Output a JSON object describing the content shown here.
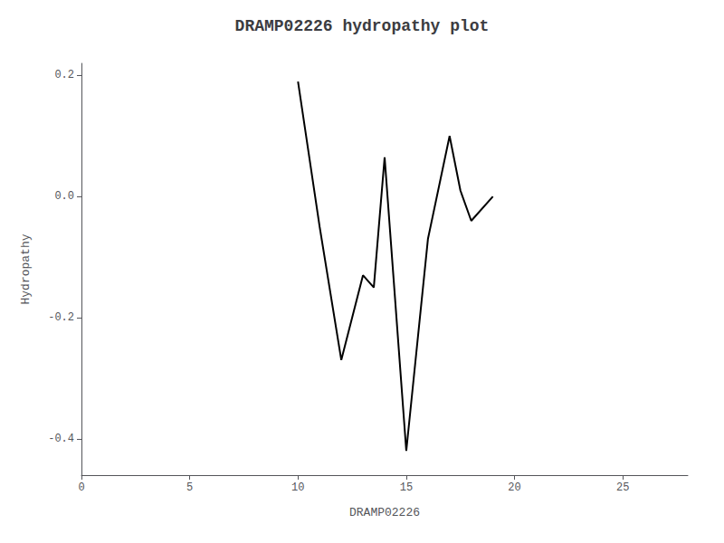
{
  "chart_data": {
    "type": "line",
    "title": "DRAMP02226 hydropathy plot",
    "xlabel": "DRAMP02226",
    "ylabel": "Hydropathy",
    "x": [
      10,
      11,
      12,
      13,
      13.5,
      14,
      15,
      16,
      17,
      17.5,
      18,
      19
    ],
    "values": [
      0.19,
      -0.05,
      -0.27,
      -0.13,
      -0.15,
      0.065,
      -0.42,
      -0.07,
      0.1,
      0.01,
      -0.04,
      0.0
    ],
    "color": "#000000",
    "xlim": [
      0,
      28
    ],
    "xticks": [
      0,
      5,
      10,
      15,
      20,
      25
    ],
    "ylim": [
      -0.46,
      0.22
    ],
    "yticks": [
      -0.4,
      -0.2,
      {
        "value": 0.0,
        "label": "0.0"
      },
      0.2
    ],
    "grid": false
  }
}
